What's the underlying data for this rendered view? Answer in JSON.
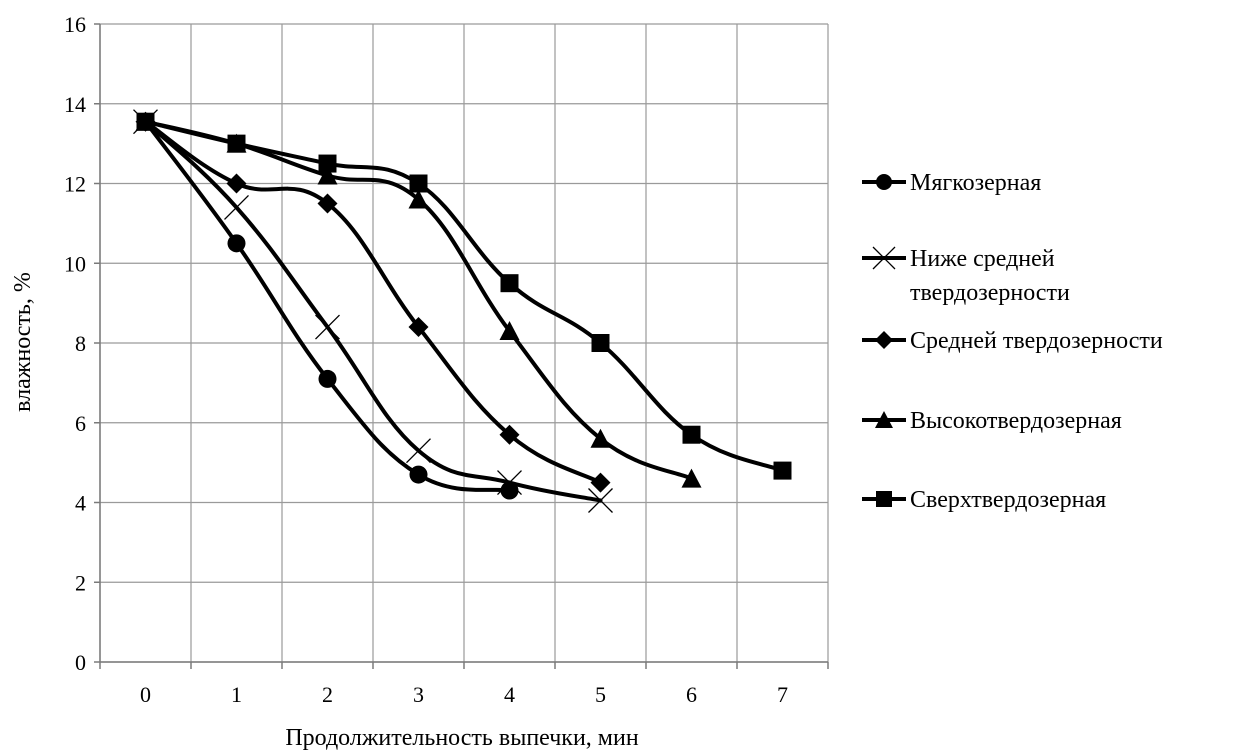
{
  "chart_data": {
    "type": "line",
    "title": "",
    "xlabel": "Продолжительность выпечки, мин",
    "ylabel": "влажность, %",
    "x": [
      0,
      1,
      2,
      3,
      4,
      5,
      6,
      7
    ],
    "xlim": [
      -0.5,
      7.5
    ],
    "ylim": [
      0,
      16
    ],
    "yticks": [
      0,
      2,
      4,
      6,
      8,
      10,
      12,
      14,
      16
    ],
    "xticks": [
      0,
      1,
      2,
      3,
      4,
      5,
      6,
      7
    ],
    "grid": true,
    "legend_position": "right",
    "series": [
      {
        "name": "Мягкозерная",
        "marker": "circle",
        "color": "#000000",
        "x": [
          0,
          1,
          2,
          3,
          4
        ],
        "y": [
          13.55,
          10.5,
          7.1,
          4.7,
          4.3
        ]
      },
      {
        "name": "Ниже средней твердозерности",
        "marker": "x",
        "color": "#000000",
        "x": [
          0,
          1,
          2,
          3,
          4,
          5
        ],
        "y": [
          13.55,
          11.4,
          8.4,
          5.3,
          4.5,
          4.05
        ]
      },
      {
        "name": "Средней твердозерности",
        "marker": "diamond",
        "color": "#000000",
        "x": [
          0,
          1,
          2,
          3,
          4,
          5
        ],
        "y": [
          13.55,
          12.0,
          11.5,
          8.4,
          5.7,
          4.5
        ]
      },
      {
        "name": "Высокотвердозерная",
        "marker": "triangle",
        "color": "#000000",
        "x": [
          0,
          1,
          2,
          3,
          4,
          5,
          6
        ],
        "y": [
          13.55,
          13.0,
          12.2,
          11.6,
          8.3,
          5.6,
          4.6
        ]
      },
      {
        "name": "Сверхтвердозерная",
        "marker": "square",
        "color": "#000000",
        "x": [
          0,
          1,
          2,
          3,
          4,
          5,
          6,
          7
        ],
        "y": [
          13.55,
          13.0,
          12.5,
          12.0,
          9.5,
          8.0,
          5.7,
          4.8
        ]
      }
    ]
  }
}
